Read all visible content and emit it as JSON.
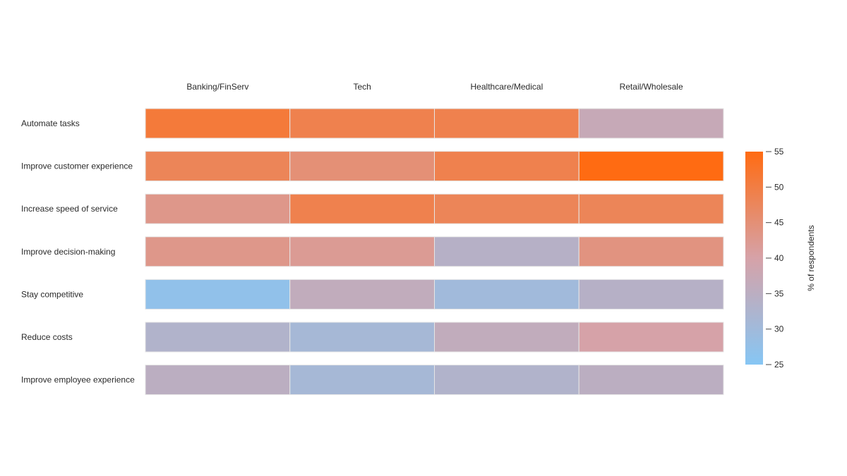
{
  "chart_data": {
    "type": "heatmap",
    "title": "",
    "x_categories": [
      "Banking/FinServ",
      "Tech",
      "Healthcare/Medical",
      "Retail/Wholesale"
    ],
    "y_categories": [
      "Automate tasks",
      "Improve customer experience",
      "Increase speed of service",
      "Improve decision-making",
      "Stay competitive",
      "Reduce costs",
      "Improve employee experience"
    ],
    "values": [
      [
        51,
        49,
        49,
        37
      ],
      [
        48,
        45,
        49,
        55
      ],
      [
        43,
        49,
        48,
        48
      ],
      [
        43,
        42,
        34,
        44
      ],
      [
        27,
        36,
        30,
        34
      ],
      [
        33,
        31,
        36,
        40
      ],
      [
        35,
        31,
        33,
        35
      ]
    ],
    "colorbar": {
      "label": "% of respondents",
      "min": 25,
      "max": 55,
      "ticks": [
        "55",
        "50",
        "45",
        "40",
        "35",
        "30",
        "25"
      ],
      "colors": {
        "low": "#86c6f4",
        "mid": "#d6a2a8",
        "high": "#ff6b12"
      }
    }
  }
}
